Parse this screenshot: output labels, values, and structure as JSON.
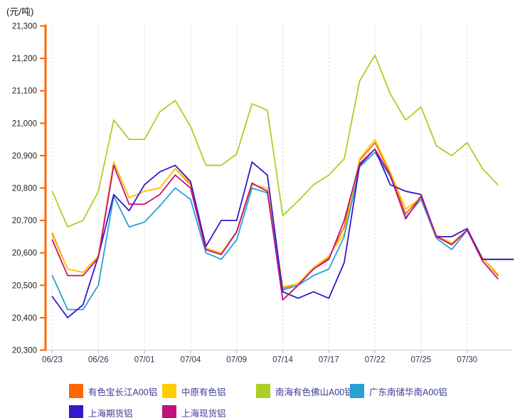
{
  "chart_data": {
    "type": "line",
    "unit_label": "(元/吨)",
    "y_axis": {
      "min": 20300,
      "max": 21300,
      "step": 100,
      "tick_labels": [
        "21,300",
        "21,200",
        "21,100",
        "21,000",
        "20,900",
        "20,800",
        "20,700",
        "20,600",
        "20,500",
        "20,400",
        "20,300"
      ]
    },
    "x_axis": {
      "tick_labels": [
        "06/23",
        "06/26",
        "07/01",
        "07/04",
        "07/09",
        "07/14",
        "07/17",
        "07/22",
        "07/25",
        "07/30"
      ],
      "label_every_n_points": 3,
      "num_points": 31
    },
    "grid": "vertical-dashed",
    "legend_position": "bottom-left",
    "axis_colors": {
      "y_axis": "#ff6600",
      "x_axis": "#c8c8c8",
      "gridline": "#dadada",
      "x_tick": "#b5b5b5"
    },
    "text_colors": {
      "y_tick_label": "#222222",
      "x_tick_label": "#333350",
      "legend_label": "#3c3c96",
      "title": "#1a1a1a"
    },
    "series": [
      {
        "name": "有色宝长江A00铝",
        "color": "#ff6600",
        "values": [
          20660,
          20550,
          20540,
          20590,
          20880,
          20770,
          20790,
          20800,
          20860,
          20810,
          20610,
          20595,
          20665,
          20815,
          20790,
          20490,
          20505,
          20550,
          20585,
          20680,
          20885,
          20940,
          20845,
          20720,
          20775,
          20650,
          20630,
          20670,
          20585,
          20530,
          null
        ]
      },
      {
        "name": "中原有色铝",
        "color": "#ffcc00",
        "values": [
          20655,
          20550,
          20540,
          20590,
          20880,
          20770,
          20790,
          20800,
          20860,
          20815,
          20615,
          20600,
          20665,
          20810,
          20800,
          20495,
          20505,
          20555,
          20590,
          20660,
          20890,
          20950,
          20850,
          20735,
          20770,
          20655,
          20630,
          20670,
          20585,
          20535,
          null
        ]
      },
      {
        "name": "南海有色佛山A00铝",
        "color": "#abd024",
        "values": [
          20790,
          20680,
          20700,
          20790,
          21010,
          20950,
          20950,
          21035,
          21070,
          20990,
          20870,
          20870,
          20905,
          21060,
          21040,
          20715,
          20760,
          20810,
          20840,
          20890,
          21130,
          21210,
          21090,
          21010,
          21050,
          20930,
          20900,
          20940,
          20860,
          20810,
          null
        ]
      },
      {
        "name": "广东南储华南A00铝",
        "color": "#2a9fd6",
        "values": [
          20530,
          20425,
          20425,
          20500,
          20775,
          20680,
          20695,
          20745,
          20800,
          20765,
          20600,
          20580,
          20640,
          20800,
          20785,
          20485,
          20500,
          20530,
          20550,
          20650,
          20865,
          20910,
          20835,
          20710,
          20765,
          20645,
          20610,
          20670,
          20580,
          20580,
          20580
        ]
      },
      {
        "name": "上海期货铝",
        "color": "#3318cc",
        "values": [
          20465,
          20400,
          20440,
          20590,
          20780,
          20730,
          20810,
          20850,
          20870,
          20820,
          20620,
          20700,
          20700,
          20880,
          20840,
          20480,
          20460,
          20480,
          20460,
          20570,
          20870,
          20920,
          20810,
          20790,
          20780,
          20650,
          20650,
          20675,
          20580,
          20580,
          20580
        ]
      },
      {
        "name": "上海现货铝",
        "color": "#c2117e",
        "values": [
          20640,
          20530,
          20530,
          20585,
          20870,
          20750,
          20750,
          20780,
          20840,
          20800,
          20610,
          20595,
          20665,
          20815,
          20790,
          20455,
          20500,
          20550,
          20580,
          20700,
          20875,
          20920,
          20840,
          20705,
          20775,
          20650,
          20625,
          20670,
          20575,
          20520,
          null
        ]
      }
    ]
  }
}
